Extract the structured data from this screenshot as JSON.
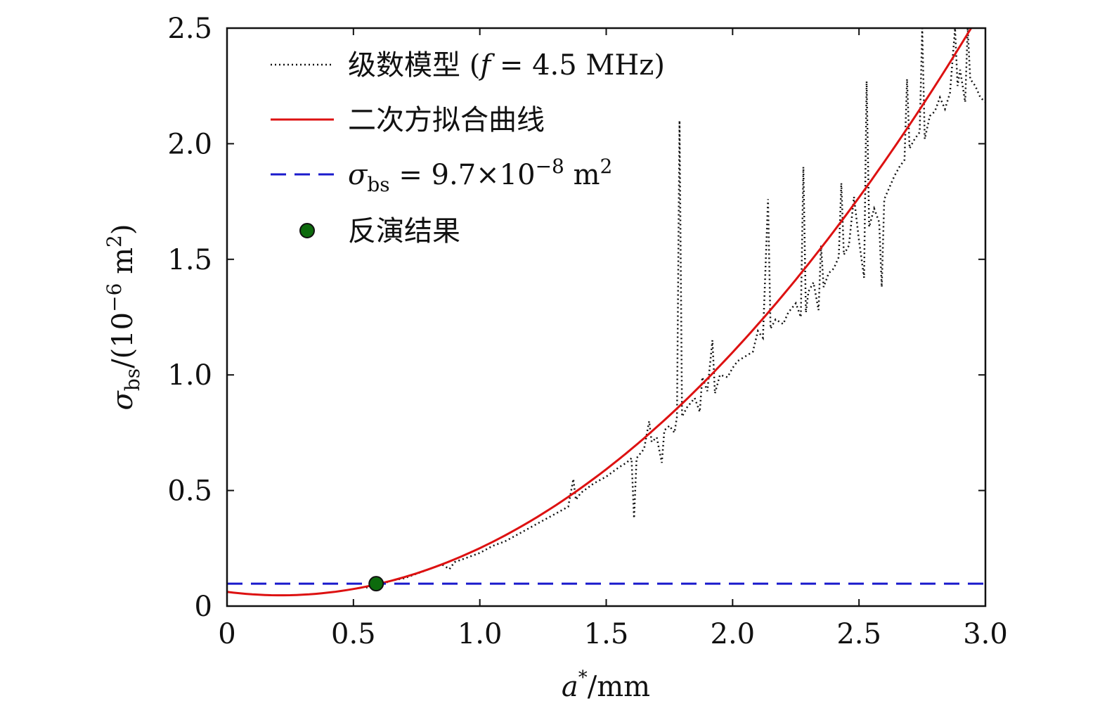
{
  "chart_data": {
    "type": "line",
    "xlim": [
      0,
      3.0
    ],
    "ylim": [
      0,
      2.5
    ],
    "x_ticks": [
      "0",
      "0.5",
      "1.0",
      "1.5",
      "2.0",
      "2.5",
      "3.0"
    ],
    "x_tick_values": [
      0,
      0.5,
      1.0,
      1.5,
      2.0,
      2.5,
      3.0
    ],
    "y_ticks": [
      "0",
      "0.5",
      "1.0",
      "1.5",
      "2.0",
      "2.5"
    ],
    "y_tick_values": [
      0,
      0.5,
      1.0,
      1.5,
      2.0,
      2.5
    ],
    "xlabel": {
      "var": "a",
      "sup": "*",
      "unit": "/mm"
    },
    "ylabel": {
      "var": "σ",
      "sub": "bs",
      "unit": "/(10",
      "exp": "−6",
      "unit_rest": " m",
      "unit_exp": "2",
      "close": ")"
    },
    "legend": [
      {
        "text": "级数模型",
        "math_prefix": " (",
        "math_var": "f",
        "math_rest": " = 4.5  MHz)",
        "style": "dotted",
        "color": "#111111"
      },
      {
        "text": "二次方拟合曲线",
        "style": "solid",
        "color": "#dd1111"
      },
      {
        "math_var": "σ",
        "math_sub": "bs",
        "math_rest": " = 9.7×10",
        "math_exp": "−8",
        "math_unit": " m",
        "math_unit_exp": "2",
        "style": "dashed",
        "color": "#1a1acc"
      },
      {
        "text": "反演结果",
        "style": "marker",
        "color": "#0d6b0d"
      }
    ],
    "series": [
      {
        "name": "级数模型 (f = 4.5 MHz)",
        "style": "dotted",
        "color": "#111111",
        "x": [
          0.55,
          0.6,
          0.65,
          0.7,
          0.75,
          0.8,
          0.85,
          0.88,
          0.9,
          0.95,
          1.0,
          1.05,
          1.1,
          1.15,
          1.2,
          1.25,
          1.3,
          1.35,
          1.37,
          1.38,
          1.4,
          1.45,
          1.5,
          1.55,
          1.58,
          1.6,
          1.61,
          1.62,
          1.65,
          1.67,
          1.68,
          1.7,
          1.72,
          1.73,
          1.75,
          1.77,
          1.78,
          1.79,
          1.8,
          1.82,
          1.85,
          1.87,
          1.88,
          1.9,
          1.92,
          1.93,
          1.95,
          1.98,
          2.0,
          2.02,
          2.05,
          2.08,
          2.1,
          2.12,
          2.14,
          2.15,
          2.17,
          2.2,
          2.22,
          2.25,
          2.27,
          2.28,
          2.29,
          2.3,
          2.32,
          2.34,
          2.35,
          2.36,
          2.38,
          2.4,
          2.42,
          2.43,
          2.44,
          2.46,
          2.48,
          2.5,
          2.52,
          2.53,
          2.54,
          2.56,
          2.58,
          2.59,
          2.6,
          2.62,
          2.64,
          2.66,
          2.68,
          2.69,
          2.7,
          2.72,
          2.74,
          2.75,
          2.76,
          2.78,
          2.8,
          2.82,
          2.84,
          2.86,
          2.88,
          2.89,
          2.9,
          2.92,
          2.93,
          2.94,
          2.96,
          2.98,
          3.0
        ],
        "y": [
          0.08,
          0.09,
          0.11,
          0.12,
          0.14,
          0.16,
          0.18,
          0.16,
          0.19,
          0.21,
          0.23,
          0.26,
          0.28,
          0.31,
          0.34,
          0.37,
          0.4,
          0.43,
          0.55,
          0.46,
          0.49,
          0.53,
          0.56,
          0.6,
          0.62,
          0.64,
          0.38,
          0.64,
          0.68,
          0.8,
          0.71,
          0.73,
          0.62,
          0.76,
          0.78,
          0.75,
          0.82,
          2.1,
          0.82,
          0.86,
          0.9,
          0.84,
          0.99,
          0.93,
          1.15,
          0.92,
          1.0,
          0.99,
          1.03,
          1.06,
          1.08,
          1.1,
          1.19,
          1.16,
          1.76,
          1.2,
          1.24,
          1.22,
          1.27,
          1.31,
          1.25,
          1.9,
          1.27,
          1.36,
          1.4,
          1.28,
          1.56,
          1.38,
          1.44,
          1.46,
          1.51,
          1.83,
          1.52,
          1.56,
          1.77,
          1.58,
          1.42,
          2.27,
          1.64,
          1.72,
          1.66,
          1.38,
          1.76,
          1.81,
          1.86,
          1.9,
          1.93,
          2.28,
          1.98,
          2.02,
          2.05,
          2.5,
          2.02,
          2.12,
          2.14,
          2.2,
          2.15,
          2.22,
          2.5,
          2.25,
          2.32,
          2.18,
          2.5,
          2.28,
          2.25,
          2.2,
          2.18
        ]
      },
      {
        "name": "二次方拟合曲线",
        "style": "solid",
        "color": "#dd1111",
        "quadratic": {
          "a": 0.3289,
          "b": -0.1397,
          "c": 0.0615
        }
      },
      {
        "name": "σbs = 9.7×10^-8 m^2",
        "style": "dashed",
        "color": "#1a1acc",
        "y_const": 0.097
      },
      {
        "name": "反演结果",
        "style": "marker",
        "color": "#0d6b0d",
        "points": [
          {
            "x": 0.59,
            "y": 0.097
          }
        ]
      }
    ]
  }
}
